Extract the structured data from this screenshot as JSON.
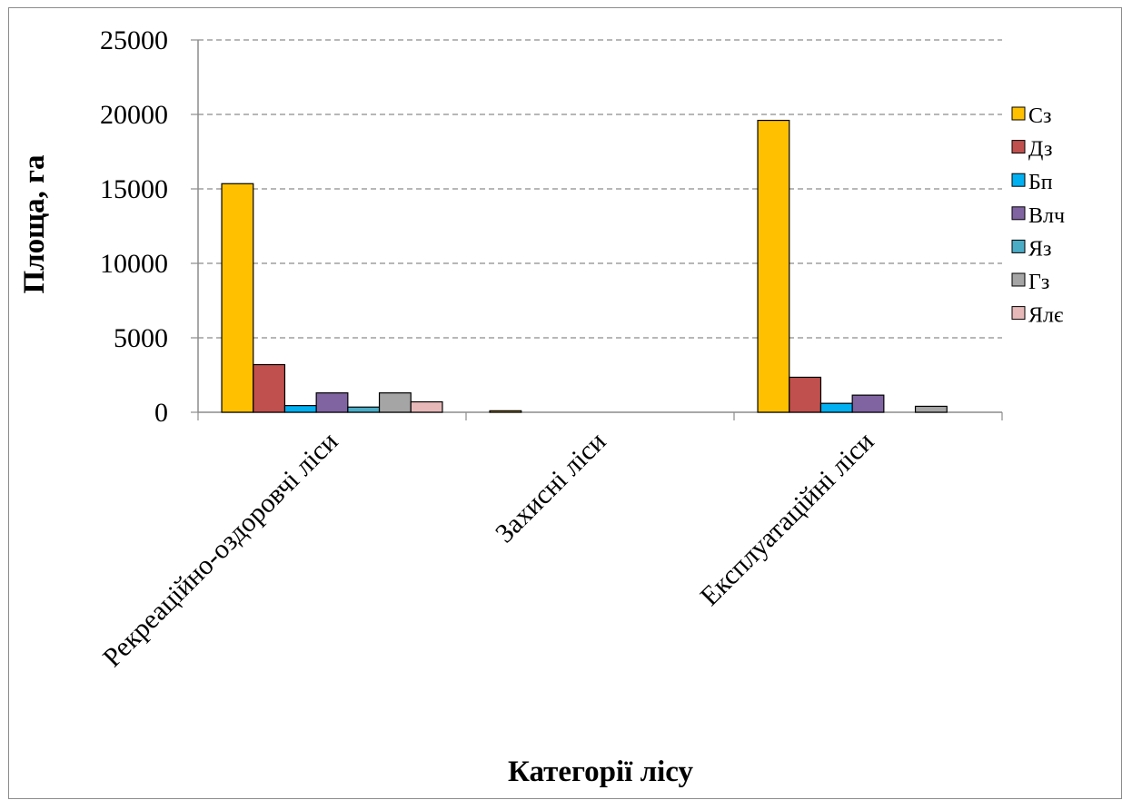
{
  "chart_data": {
    "type": "bar",
    "title": "",
    "xlabel": "Категорії лісу",
    "ylabel": "Площа, га",
    "ylim": [
      0,
      25000
    ],
    "yticks": [
      0,
      5000,
      10000,
      15000,
      20000,
      25000
    ],
    "grid": true,
    "legend_position": "right",
    "categories": [
      "Рекреаційно-оздоровчі ліси",
      "Захисні ліси",
      "Експлуатаційні ліси"
    ],
    "series": [
      {
        "name": "Сз",
        "color": "#FFC000",
        "values": [
          15350,
          100,
          19600
        ]
      },
      {
        "name": "Дз",
        "color": "#C0504D",
        "values": [
          3200,
          0,
          2350
        ]
      },
      {
        "name": "Бп",
        "color": "#00B0F0",
        "values": [
          450,
          0,
          600
        ]
      },
      {
        "name": "Влч",
        "color": "#8064A2",
        "values": [
          1300,
          0,
          1150
        ]
      },
      {
        "name": "Яз",
        "color": "#4BACC6",
        "values": [
          350,
          0,
          0
        ]
      },
      {
        "name": "Гз",
        "color": "#A5A5A5",
        "values": [
          1300,
          0,
          400
        ]
      },
      {
        "name": "Ялє",
        "color": "#E6B9B8",
        "values": [
          700,
          0,
          0
        ]
      }
    ]
  }
}
